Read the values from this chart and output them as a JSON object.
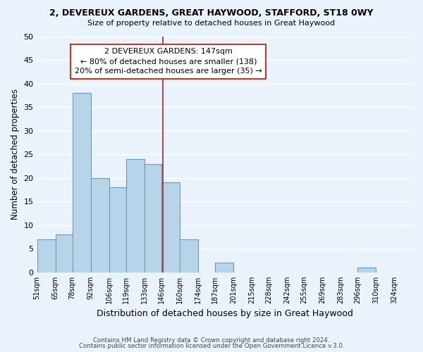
{
  "title1": "2, DEVEREUX GARDENS, GREAT HAYWOOD, STAFFORD, ST18 0WY",
  "title2": "Size of property relative to detached houses in Great Haywood",
  "xlabel": "Distribution of detached houses by size in Great Haywood",
  "ylabel": "Number of detached properties",
  "footer1": "Contains HM Land Registry data © Crown copyright and database right 2024.",
  "footer2": "Contains public sector information licensed under the Open Government Licence v.3.0.",
  "bin_labels": [
    "51sqm",
    "65sqm",
    "78sqm",
    "92sqm",
    "106sqm",
    "119sqm",
    "133sqm",
    "146sqm",
    "160sqm",
    "174sqm",
    "187sqm",
    "201sqm",
    "215sqm",
    "228sqm",
    "242sqm",
    "255sqm",
    "269sqm",
    "283sqm",
    "296sqm",
    "310sqm",
    "324sqm"
  ],
  "bin_edges": [
    51,
    65,
    78,
    92,
    106,
    119,
    133,
    146,
    160,
    174,
    187,
    201,
    215,
    228,
    242,
    255,
    269,
    283,
    296,
    310,
    324
  ],
  "bar_heights": [
    7,
    8,
    38,
    20,
    18,
    24,
    23,
    19,
    7,
    0,
    2,
    0,
    0,
    0,
    0,
    0,
    0,
    0,
    1,
    0,
    0
  ],
  "bar_color": "#b8d4e8",
  "bar_edge_color": "#5a9ec9",
  "property_size": 147,
  "vline_color": "#a0272a",
  "annotation_line1": "2 DEVEREUX GARDENS: 147sqm",
  "annotation_line2": "← 80% of detached houses are smaller (138)",
  "annotation_line3": "20% of semi-detached houses are larger (35) →",
  "ylim": [
    0,
    50
  ],
  "yticks": [
    0,
    5,
    10,
    15,
    20,
    25,
    30,
    35,
    40,
    45,
    50
  ],
  "bg_color": "#eaf3fb",
  "grid_color": "#ffffff",
  "ann_box_edge_color": "#c0392b",
  "ann_box_face_color": "#ffffff"
}
